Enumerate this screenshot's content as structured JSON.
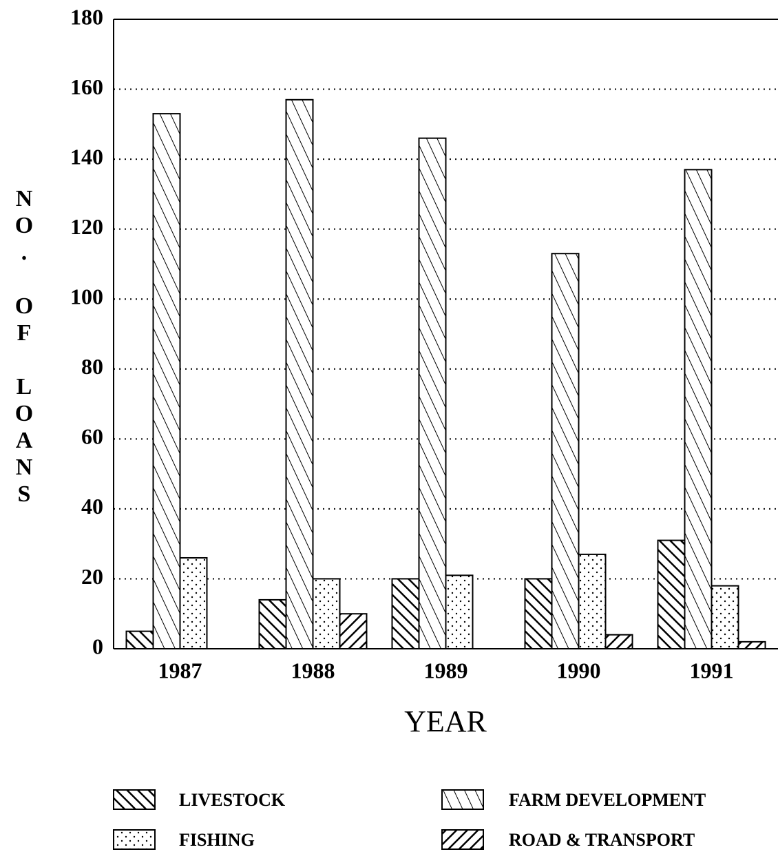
{
  "chart_data": {
    "type": "bar",
    "xlabel": "YEAR",
    "ylabel": "NO. OF LOANS",
    "categories": [
      "1987",
      "1988",
      "1989",
      "1990",
      "1991"
    ],
    "series": [
      {
        "name": "LIVESTOCK",
        "color": "#000000",
        "values": [
          5,
          14,
          20,
          20,
          31
        ]
      },
      {
        "name": "FARM DEVELOPMENT",
        "color": "#000000",
        "values": [
          153,
          157,
          146,
          113,
          137
        ]
      },
      {
        "name": "FISHING",
        "color": "#000000",
        "values": [
          26,
          20,
          21,
          27,
          18
        ]
      },
      {
        "name": "ROAD & TRANSPORT",
        "color": "#000000",
        "values": [
          0,
          10,
          0,
          4,
          2
        ]
      }
    ],
    "ylim": [
      0,
      180
    ],
    "yticks": [
      0,
      20,
      40,
      60,
      80,
      100,
      120,
      140,
      160,
      180
    ],
    "grid": true
  }
}
